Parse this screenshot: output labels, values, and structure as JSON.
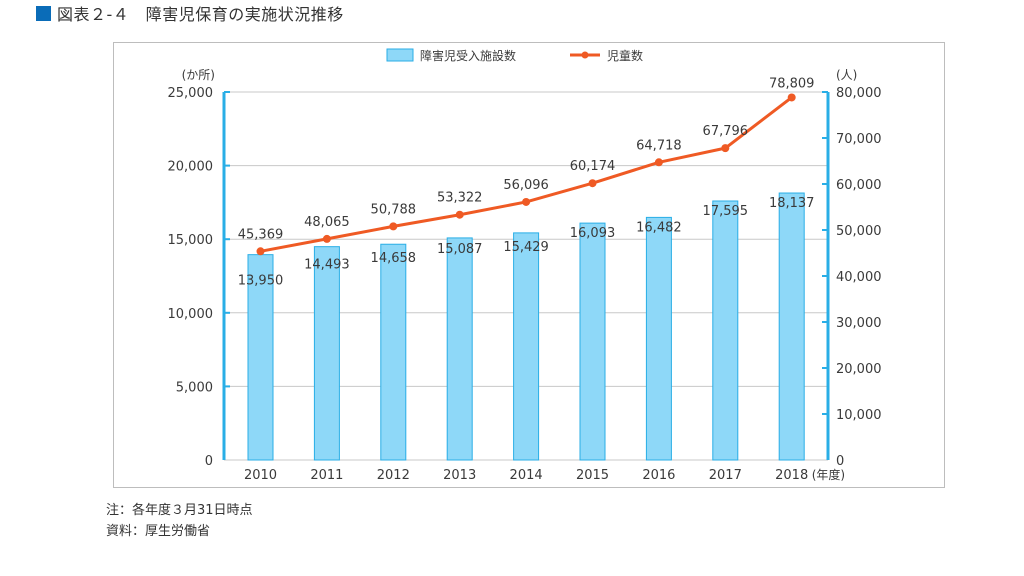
{
  "figure": {
    "title_prefix": "図表２-４",
    "title": "障害児保育の実施状況推移",
    "title_full": "図表２-４　障害児保育の実施状況推移",
    "accent_color": "#0a6cb8"
  },
  "notes": [
    "注：各年度３月31日時点",
    "資料：厚生労働省"
  ],
  "chart_data": {
    "type": "bar",
    "combo": "bar+line",
    "title": "障害児保育の実施状況推移",
    "categories": [
      "2010",
      "2011",
      "2012",
      "2013",
      "2014",
      "2015",
      "2016",
      "2017",
      "2018"
    ],
    "xlabel": "(年度)",
    "x_unit_label": "(年度)",
    "legend_position": "top-center",
    "grid": true,
    "series": [
      {
        "name": "障害児受入施設数",
        "type": "bar",
        "axis": "left",
        "color": "#8ed8f8",
        "edge_color": "#29aee6",
        "values": [
          13950,
          14493,
          14658,
          15087,
          15429,
          16093,
          16482,
          17595,
          18137
        ],
        "labels": [
          "13,950",
          "14,493",
          "14,658",
          "15,087",
          "15,429",
          "16,093",
          "16,482",
          "17,595",
          "18,137"
        ]
      },
      {
        "name": "児童数",
        "type": "line",
        "axis": "right",
        "color": "#ef5a24",
        "values": [
          45369,
          48065,
          50788,
          53322,
          56096,
          60174,
          64718,
          67796,
          78809
        ],
        "labels": [
          "45,369",
          "48,065",
          "50,788",
          "53,322",
          "56,096",
          "60,174",
          "64,718",
          "67,796",
          "78,809"
        ]
      }
    ],
    "left_axis": {
      "unit_label": "(か所)",
      "ylim": [
        0,
        25000
      ],
      "ticks": [
        0,
        5000,
        10000,
        15000,
        20000,
        25000
      ],
      "tick_labels": [
        "0",
        "5,000",
        "10,000",
        "15,000",
        "20,000",
        "25,000"
      ],
      "color": "#29aee6"
    },
    "right_axis": {
      "unit_label": "(人)",
      "ylim": [
        0,
        80000
      ],
      "ticks": [
        0,
        10000,
        20000,
        30000,
        40000,
        50000,
        60000,
        70000,
        80000
      ],
      "tick_labels": [
        "0",
        "10,000",
        "20,000",
        "30,000",
        "40,000",
        "50,000",
        "60,000",
        "70,000",
        "80,000"
      ],
      "color": "#29aee6"
    }
  }
}
